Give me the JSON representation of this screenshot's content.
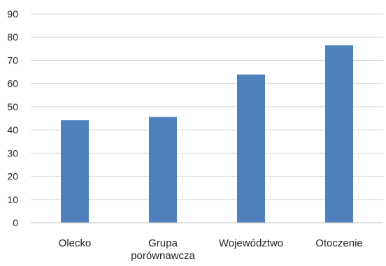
{
  "chart_data": {
    "type": "bar",
    "categories": [
      [
        "Olecko"
      ],
      [
        "Grupa",
        "porównawcza"
      ],
      [
        "Województwo"
      ],
      [
        "Otoczenie"
      ]
    ],
    "values": [
      44.2,
      45.6,
      63.9,
      76.5
    ],
    "title": "",
    "xlabel": "",
    "ylabel": "",
    "ylim": [
      0,
      90
    ],
    "yticks": [
      0,
      10,
      20,
      30,
      40,
      50,
      60,
      70,
      80,
      90
    ],
    "grid": true,
    "legend": "none",
    "colors": {
      "bar": "#4f81bd",
      "grid": "#d9d9d9",
      "axis": "#bfbfbf",
      "text": "#222222"
    }
  }
}
